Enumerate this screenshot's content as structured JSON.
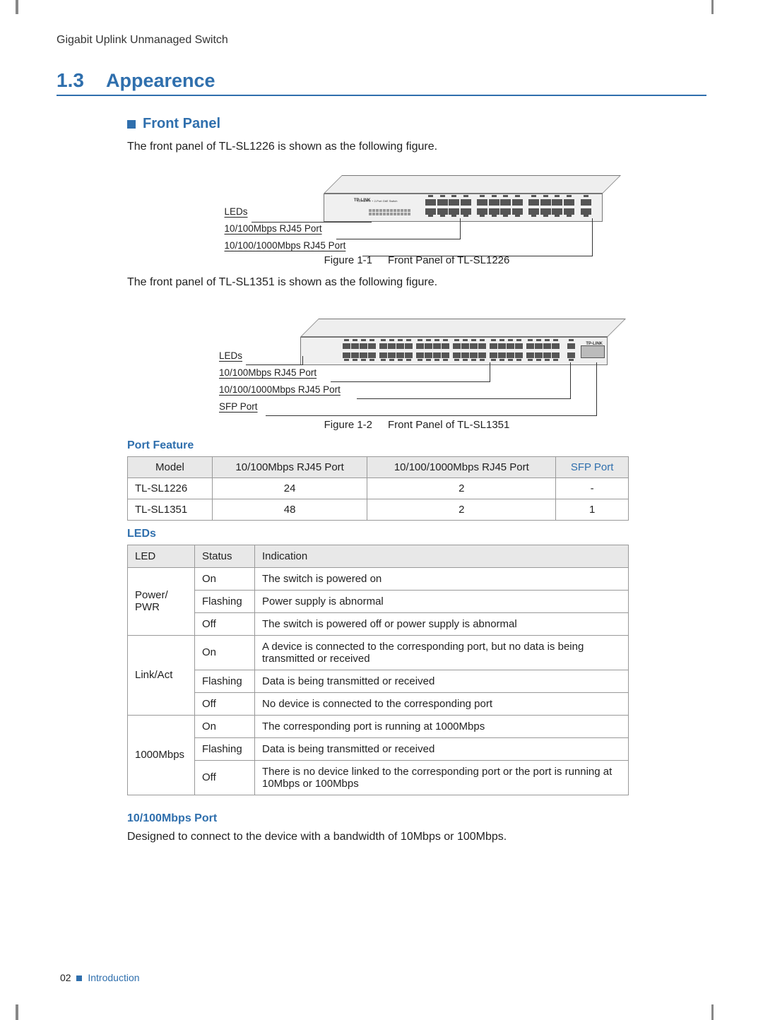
{
  "header": {
    "product": "Gigabit Uplink Unmanaged Switch"
  },
  "section": {
    "num": "1.3",
    "title": "Appearence"
  },
  "front_panel": {
    "heading": "Front Panel",
    "p1": "The front panel of TL-SL1226 is shown as the following figure.",
    "p2": "The front panel of TL-SL1351 is shown as the following figure.",
    "fig1": {
      "labels": {
        "leds": "LEDs",
        "port100": "10/100Mbps RJ45 Port",
        "port1000": "10/100/1000Mbps RJ45 Port"
      },
      "caption_num": "Figure 1-1",
      "caption_text": "Front Panel of TL-SL1226",
      "brand": "TP-LINK",
      "model": "TL-SL1226",
      "desc": "24-Port FE + 2-Port GbE Switch",
      "top_ports": 12,
      "bot_ports": 12,
      "giga_ports": 1
    },
    "fig2": {
      "labels": {
        "leds": "LEDs",
        "port100": "10/100Mbps RJ45 Port",
        "port1000": "10/100/1000Mbps RJ45 Port",
        "sfp": "SFP Port"
      },
      "caption_num": "Figure 1-2",
      "caption_text": "Front Panel of TL-SL1351",
      "brand": "TP-LINK",
      "top_ports": 24,
      "bot_ports": 24
    }
  },
  "port_feature": {
    "heading": "Port Feature",
    "columns": [
      "Model",
      "10/100Mbps RJ45 Port",
      "10/100/1000Mbps RJ45 Port",
      "SFP Port"
    ],
    "rows": [
      [
        "TL-SL1226",
        "24",
        "2",
        "-"
      ],
      [
        "TL-SL1351",
        "48",
        "2",
        "1"
      ]
    ]
  },
  "leds": {
    "heading": "LEDs",
    "columns": [
      "LED",
      "Status",
      "Indication"
    ],
    "groups": [
      {
        "led": "Power/\nPWR",
        "rows": [
          [
            "On",
            "The switch is powered on"
          ],
          [
            "Flashing",
            "Power supply is abnormal"
          ],
          [
            "Off",
            "The switch is powered off or power supply is abnormal"
          ]
        ]
      },
      {
        "led": "Link/Act",
        "rows": [
          [
            "On",
            "A device is connected to the corresponding port, but no data is being transmitted or received"
          ],
          [
            "Flashing",
            "Data is being transmitted or received"
          ],
          [
            "Off",
            "No device is connected to the corresponding port"
          ]
        ]
      },
      {
        "led": "1000Mbps",
        "rows": [
          [
            "On",
            "The corresponding port is running at 1000Mbps"
          ],
          [
            "Flashing",
            "Data is being transmitted or received"
          ],
          [
            "Off",
            "There is no device linked to the corresponding port or the port  is running at 10Mbps or 100Mbps"
          ]
        ]
      }
    ]
  },
  "port10_100": {
    "heading": "10/100Mbps Port",
    "text": "Designed to connect to the device with a bandwidth of 10Mbps or 100Mbps."
  },
  "footer": {
    "page": "02",
    "section": "Introduction"
  },
  "colors": {
    "accent": "#2f6fad",
    "border": "#999999",
    "table_header_bg": "#e8e8e8",
    "text": "#222222"
  }
}
